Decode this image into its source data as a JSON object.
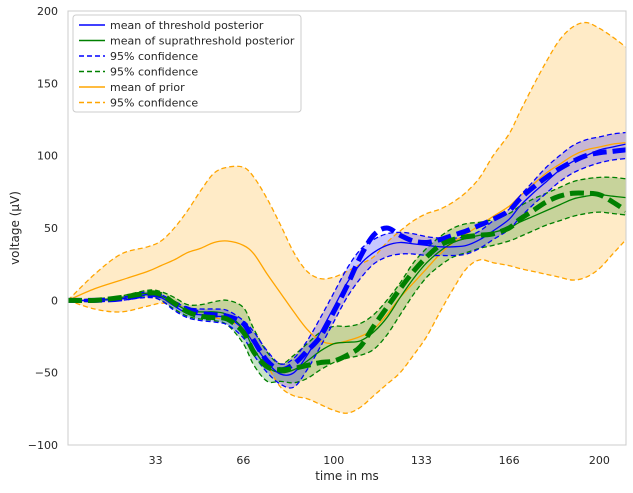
{
  "chart_data": {
    "type": "line",
    "title": "",
    "xlabel": "time in ms",
    "ylabel": "voltage (µV)",
    "xlim": [
      0,
      210
    ],
    "ylim": [
      -100,
      200
    ],
    "xticks": [
      33,
      66,
      100,
      133,
      166,
      200
    ],
    "xtick_labels": [
      "33",
      "66",
      "100",
      "133",
      "166",
      "200"
    ],
    "yticks": [
      -100,
      -50,
      0,
      50,
      100,
      150,
      200
    ],
    "ytick_labels": [
      "−100",
      "−50",
      "0",
      "50",
      "100",
      "150",
      "200"
    ],
    "grid": false,
    "legend_position": "top-left",
    "legend": [
      {
        "label": "mean of threshold posterior",
        "color": "#0000ff",
        "dash": "solid"
      },
      {
        "label": "mean of suprathreshold posterior",
        "color": "#008000",
        "dash": "solid"
      },
      {
        "label": "95% confidence",
        "color": "#0000ff",
        "dash": "dashed"
      },
      {
        "label": "95% confidence",
        "color": "#008000",
        "dash": "dashed"
      },
      {
        "label": "mean of prior",
        "color": "#ffa500",
        "dash": "solid"
      },
      {
        "label": "95% confidence",
        "color": "#ffa500",
        "dash": "dashed"
      }
    ],
    "x": [
      0,
      10,
      20,
      30,
      35,
      40,
      45,
      50,
      55,
      60,
      66,
      70,
      75,
      80,
      85,
      90,
      95,
      100,
      105,
      110,
      115,
      120,
      125,
      130,
      135,
      140,
      145,
      150,
      155,
      160,
      166,
      170,
      175,
      180,
      185,
      190,
      195,
      200,
      205,
      210
    ],
    "series": [
      {
        "name": "mean of prior",
        "color": "#ffa500",
        "style": "solid",
        "values": [
          0,
          8,
          14,
          20,
          24,
          28,
          33,
          36,
          40,
          41,
          38,
          32,
          18,
          5,
          -8,
          -20,
          -28,
          -30,
          -28,
          -25,
          -20,
          -10,
          2,
          12,
          22,
          32,
          40,
          46,
          52,
          58,
          65,
          72,
          80,
          88,
          94,
          100,
          104,
          106,
          108,
          109
        ]
      },
      {
        "name": "prior upper 95%",
        "color": "#ffa500",
        "style": "dashed",
        "values": [
          0,
          18,
          32,
          37,
          41,
          50,
          62,
          76,
          88,
          92,
          92,
          85,
          70,
          52,
          33,
          20,
          15,
          16,
          20,
          25,
          30,
          40,
          48,
          55,
          60,
          63,
          68,
          75,
          85,
          100,
          115,
          130,
          148,
          165,
          180,
          189,
          192,
          188,
          182,
          175
        ]
      },
      {
        "name": "prior lower 95%",
        "color": "#ffa500",
        "style": "dashed",
        "values": [
          0,
          -6,
          -8,
          -4,
          -2,
          -3,
          -6,
          -10,
          -12,
          -14,
          -20,
          -30,
          -45,
          -60,
          -66,
          -68,
          -72,
          -76,
          -78,
          -74,
          -66,
          -58,
          -50,
          -38,
          -25,
          -8,
          8,
          22,
          28,
          26,
          24,
          22,
          20,
          18,
          16,
          14,
          16,
          22,
          32,
          42
        ]
      },
      {
        "name": "mean of threshold posterior",
        "color": "#0000ff",
        "style": "solid",
        "values": [
          0,
          0,
          1,
          4,
          2,
          -4,
          -9,
          -10,
          -11,
          -12,
          -20,
          -30,
          -43,
          -51,
          -50,
          -38,
          -22,
          -5,
          12,
          25,
          33,
          38,
          40,
          39,
          38,
          37,
          37,
          38,
          42,
          48,
          56,
          65,
          74,
          82,
          90,
          96,
          100,
          104,
          106,
          108
        ]
      },
      {
        "name": "threshold upper 95%",
        "color": "#0000ff",
        "style": "dashed",
        "values": [
          0,
          1,
          2,
          6,
          4,
          -1,
          -5,
          -6,
          -6,
          -7,
          -14,
          -22,
          -35,
          -44,
          -40,
          -28,
          -12,
          5,
          22,
          35,
          42,
          46,
          47,
          46,
          44,
          43,
          43,
          44,
          48,
          55,
          63,
          72,
          82,
          92,
          100,
          107,
          111,
          113,
          115,
          116
        ]
      },
      {
        "name": "threshold lower 95%",
        "color": "#0000ff",
        "style": "dashed",
        "values": [
          0,
          -1,
          0,
          2,
          0,
          -7,
          -12,
          -14,
          -15,
          -17,
          -26,
          -38,
          -50,
          -58,
          -60,
          -48,
          -32,
          -15,
          2,
          15,
          25,
          30,
          32,
          32,
          31,
          31,
          31,
          32,
          36,
          42,
          49,
          57,
          66,
          74,
          82,
          88,
          92,
          95,
          97,
          98
        ]
      },
      {
        "name": "mean of suprathreshold posterior",
        "color": "#008000",
        "style": "solid",
        "values": [
          0,
          0,
          2,
          5,
          3,
          -2,
          -7,
          -8,
          -8,
          -10,
          -20,
          -34,
          -46,
          -50,
          -48,
          -42,
          -35,
          -30,
          -29,
          -28,
          -22,
          -12,
          2,
          15,
          26,
          34,
          40,
          43,
          45,
          47,
          50,
          54,
          58,
          62,
          66,
          70,
          72,
          73,
          72,
          71
        ]
      },
      {
        "name": "suprathreshold upper 95%",
        "color": "#008000",
        "style": "dashed",
        "values": [
          0,
          1,
          3,
          7,
          6,
          2,
          -3,
          -3,
          -1,
          0,
          -5,
          -20,
          -36,
          -44,
          -38,
          -30,
          -22,
          -18,
          -18,
          -16,
          -10,
          0,
          12,
          26,
          36,
          44,
          50,
          53,
          54,
          56,
          60,
          65,
          70,
          74,
          78,
          82,
          84,
          85,
          85,
          84
        ]
      },
      {
        "name": "suprathreshold lower 95%",
        "color": "#008000",
        "style": "dashed",
        "values": [
          0,
          -1,
          1,
          3,
          0,
          -6,
          -11,
          -13,
          -14,
          -17,
          -30,
          -45,
          -56,
          -56,
          -57,
          -54,
          -48,
          -43,
          -40,
          -38,
          -34,
          -24,
          -10,
          4,
          16,
          24,
          30,
          33,
          36,
          38,
          41,
          44,
          48,
          52,
          55,
          58,
          60,
          61,
          60,
          59
        ]
      },
      {
        "name": "threshold sample (bold)",
        "color": "#0000ff",
        "style": "bold-dashed",
        "values": [
          0,
          0,
          1,
          4,
          3,
          -2,
          -6,
          -9,
          -10,
          -11,
          -16,
          -28,
          -42,
          -48,
          -44,
          -35,
          -25,
          -8,
          10,
          30,
          45,
          50,
          45,
          41,
          40,
          42,
          45,
          48,
          52,
          56,
          62,
          70,
          78,
          85,
          91,
          96,
          100,
          102,
          103,
          104
        ]
      },
      {
        "name": "suprathreshold sample (bold)",
        "color": "#008000",
        "style": "bold-dashed",
        "values": [
          0,
          0,
          2,
          5,
          4,
          -2,
          -8,
          -11,
          -12,
          -13,
          -22,
          -36,
          -46,
          -48,
          -47,
          -45,
          -43,
          -42,
          -38,
          -32,
          -18,
          -5,
          8,
          20,
          30,
          38,
          42,
          44,
          45,
          46,
          50,
          56,
          62,
          68,
          72,
          74,
          74,
          73,
          68,
          62
        ]
      }
    ]
  }
}
